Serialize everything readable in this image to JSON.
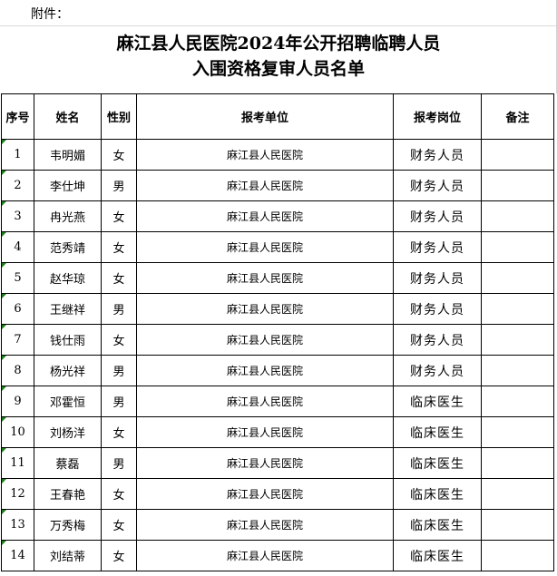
{
  "attachment_label": "附件：",
  "title_line1": "麻江县人民医院2024年公开招聘临聘人员",
  "title_line2": "入围资格复审人员名单",
  "columns": [
    "序号",
    "姓名",
    "性别",
    "报考单位",
    "报考岗位",
    "备注"
  ],
  "rows": [
    {
      "no": "1",
      "name": "韦明媚",
      "sex": "女",
      "unit": "麻江县人民医院",
      "post": "财务人员",
      "note": ""
    },
    {
      "no": "2",
      "name": "李仕坤",
      "sex": "男",
      "unit": "麻江县人民医院",
      "post": "财务人员",
      "note": ""
    },
    {
      "no": "3",
      "name": "冉光燕",
      "sex": "女",
      "unit": "麻江县人民医院",
      "post": "财务人员",
      "note": ""
    },
    {
      "no": "4",
      "name": "范秀靖",
      "sex": "女",
      "unit": "麻江县人民医院",
      "post": "财务人员",
      "note": ""
    },
    {
      "no": "5",
      "name": "赵华琼",
      "sex": "女",
      "unit": "麻江县人民医院",
      "post": "财务人员",
      "note": ""
    },
    {
      "no": "6",
      "name": "王继祥",
      "sex": "男",
      "unit": "麻江县人民医院",
      "post": "财务人员",
      "note": ""
    },
    {
      "no": "7",
      "name": "钱仕雨",
      "sex": "女",
      "unit": "麻江县人民医院",
      "post": "财务人员",
      "note": ""
    },
    {
      "no": "8",
      "name": "杨光祥",
      "sex": "男",
      "unit": "麻江县人民医院",
      "post": "财务人员",
      "note": ""
    },
    {
      "no": "9",
      "name": "邓霍恒",
      "sex": "男",
      "unit": "麻江县人民医院",
      "post": "临床医生",
      "note": ""
    },
    {
      "no": "10",
      "name": "刘杨洋",
      "sex": "女",
      "unit": "麻江县人民医院",
      "post": "临床医生",
      "note": ""
    },
    {
      "no": "11",
      "name": "蔡磊",
      "sex": "男",
      "unit": "麻江县人民医院",
      "post": "临床医生",
      "note": ""
    },
    {
      "no": "12",
      "name": "王春艳",
      "sex": "女",
      "unit": "麻江县人民医院",
      "post": "临床医生",
      "note": ""
    },
    {
      "no": "13",
      "name": "万秀梅",
      "sex": "女",
      "unit": "麻江县人民医院",
      "post": "临床医生",
      "note": ""
    },
    {
      "no": "14",
      "name": "刘结蒂",
      "sex": "女",
      "unit": "麻江县人民医院",
      "post": "临床医生",
      "note": ""
    }
  ]
}
